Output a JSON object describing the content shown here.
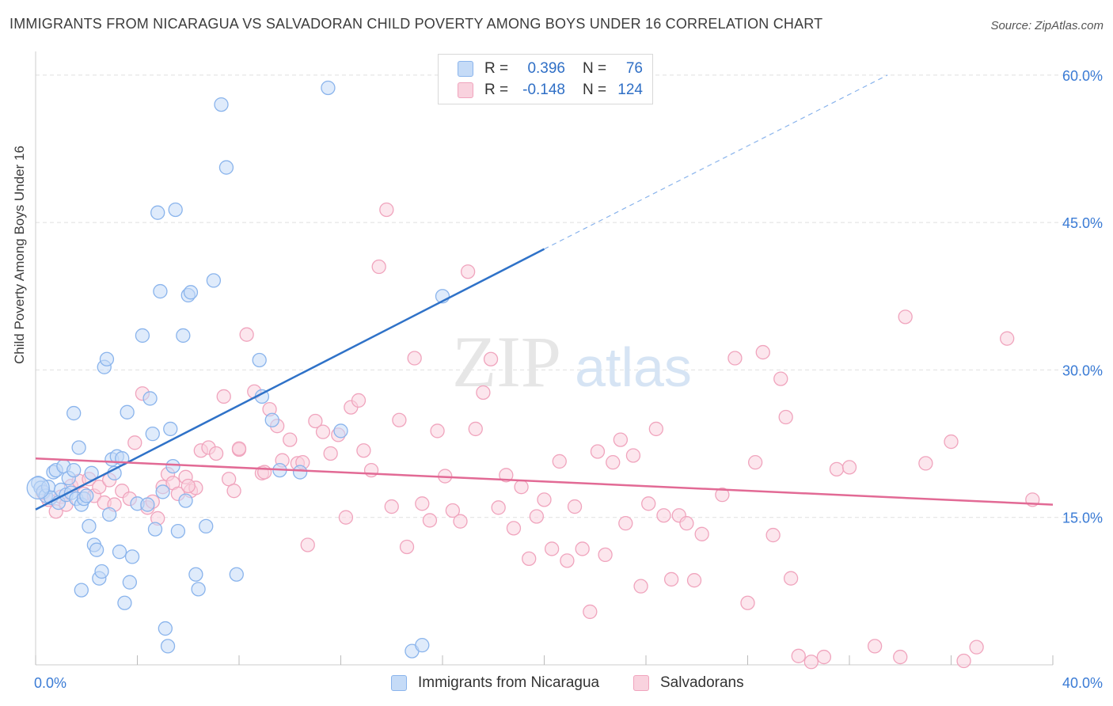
{
  "title": "IMMIGRANTS FROM NICARAGUA VS SALVADORAN CHILD POVERTY AMONG BOYS UNDER 16 CORRELATION CHART",
  "source": "Source: ZipAtlas.com",
  "watermark": {
    "zip": "ZIP",
    "atlas": "atlas"
  },
  "legend": {
    "rows": [
      {
        "r_label": "R =",
        "r_value": "0.396",
        "n_label": "N =",
        "n_value": "76"
      },
      {
        "r_label": "R =",
        "r_value": "-0.148",
        "n_label": "N =",
        "n_value": "124"
      }
    ]
  },
  "chart_data": {
    "type": "scatter",
    "title": "IMMIGRANTS FROM NICARAGUA VS SALVADORAN CHILD POVERTY AMONG BOYS UNDER 16 CORRELATION CHART",
    "xlabel": "",
    "ylabel": "Child Poverty Among Boys Under 16",
    "xlim": [
      0,
      40
    ],
    "ylim": [
      0,
      62
    ],
    "x_tick_labels": [
      "0.0%",
      "40.0%"
    ],
    "y_ticks": [
      15,
      30,
      45,
      60
    ],
    "y_tick_labels": [
      "15.0%",
      "30.0%",
      "45.0%",
      "60.0%"
    ],
    "grid": true,
    "legend_position": "top-center",
    "series": [
      {
        "name": "Immigrants from Nicaragua",
        "color": "#8ab4ec",
        "fill": "#c5dbf7",
        "line_color": "#2f72c8",
        "trend": {
          "x0": 0,
          "y0": 15.8,
          "x1": 20,
          "y1": 42.3,
          "dash_x1": 33.5,
          "dash_y1": 60
        },
        "points": [
          [
            0.1,
            18.5
          ],
          [
            0.2,
            18.0
          ],
          [
            0.3,
            17.6
          ],
          [
            0.4,
            17.2
          ],
          [
            0.5,
            18.1
          ],
          [
            0.6,
            17.0
          ],
          [
            0.7,
            19.6
          ],
          [
            0.8,
            19.8
          ],
          [
            0.9,
            16.5
          ],
          [
            1.0,
            17.8
          ],
          [
            1.1,
            20.2
          ],
          [
            1.2,
            17.3
          ],
          [
            1.3,
            19.0
          ],
          [
            1.4,
            17.5
          ],
          [
            1.5,
            19.8
          ],
          [
            1.6,
            16.9
          ],
          [
            1.7,
            22.1
          ],
          [
            1.8,
            16.3
          ],
          [
            1.9,
            16.9
          ],
          [
            2.0,
            17.2
          ],
          [
            2.1,
            14.1
          ],
          [
            2.2,
            19.5
          ],
          [
            2.3,
            12.2
          ],
          [
            2.4,
            11.7
          ],
          [
            2.5,
            8.8
          ],
          [
            2.6,
            9.5
          ],
          [
            2.7,
            30.3
          ],
          [
            2.8,
            31.1
          ],
          [
            2.9,
            15.3
          ],
          [
            3.0,
            20.9
          ],
          [
            3.1,
            19.5
          ],
          [
            3.2,
            21.2
          ],
          [
            3.3,
            11.5
          ],
          [
            3.4,
            21.0
          ],
          [
            3.5,
            6.3
          ],
          [
            3.6,
            25.7
          ],
          [
            3.7,
            8.4
          ],
          [
            3.8,
            11.0
          ],
          [
            4.0,
            16.4
          ],
          [
            4.2,
            33.5
          ],
          [
            4.4,
            16.3
          ],
          [
            4.5,
            27.1
          ],
          [
            4.6,
            23.5
          ],
          [
            4.7,
            13.8
          ],
          [
            4.8,
            46.0
          ],
          [
            4.9,
            38.0
          ],
          [
            5.0,
            17.6
          ],
          [
            5.1,
            3.7
          ],
          [
            5.2,
            1.9
          ],
          [
            5.3,
            24.0
          ],
          [
            5.4,
            20.2
          ],
          [
            5.5,
            46.3
          ],
          [
            5.6,
            13.6
          ],
          [
            5.8,
            33.5
          ],
          [
            5.9,
            16.7
          ],
          [
            6.0,
            37.6
          ],
          [
            6.1,
            37.9
          ],
          [
            6.3,
            9.2
          ],
          [
            6.4,
            7.7
          ],
          [
            6.7,
            14.1
          ],
          [
            7.0,
            39.1
          ],
          [
            7.3,
            57.0
          ],
          [
            7.5,
            50.6
          ],
          [
            7.9,
            9.2
          ],
          [
            8.8,
            31.0
          ],
          [
            8.9,
            27.3
          ],
          [
            9.3,
            24.9
          ],
          [
            9.6,
            19.8
          ],
          [
            10.4,
            19.6
          ],
          [
            11.5,
            58.7
          ],
          [
            12.0,
            23.8
          ],
          [
            14.8,
            1.4
          ],
          [
            15.2,
            2.0
          ],
          [
            16.0,
            37.5
          ],
          [
            1.5,
            25.6
          ],
          [
            1.8,
            7.6
          ]
        ]
      },
      {
        "name": "Salvadorans",
        "color": "#f0a4bd",
        "fill": "#f9d2de",
        "line_color": "#e26a95",
        "trend": {
          "x0": 0,
          "y0": 21.0,
          "x1": 40,
          "y1": 16.3
        },
        "points": [
          [
            0.3,
            17.5
          ],
          [
            0.5,
            16.8
          ],
          [
            0.8,
            15.6
          ],
          [
            1.0,
            17.1
          ],
          [
            1.2,
            16.3
          ],
          [
            1.4,
            18.2
          ],
          [
            1.7,
            18.7
          ],
          [
            1.9,
            17.4
          ],
          [
            2.1,
            18.9
          ],
          [
            2.3,
            17.2
          ],
          [
            2.5,
            18.1
          ],
          [
            2.7,
            16.5
          ],
          [
            2.9,
            18.8
          ],
          [
            3.1,
            16.3
          ],
          [
            3.4,
            17.7
          ],
          [
            3.7,
            16.9
          ],
          [
            3.9,
            22.6
          ],
          [
            4.2,
            27.6
          ],
          [
            4.4,
            16.0
          ],
          [
            4.6,
            16.6
          ],
          [
            4.8,
            14.9
          ],
          [
            5.0,
            18.1
          ],
          [
            5.2,
            19.4
          ],
          [
            5.4,
            18.5
          ],
          [
            5.6,
            17.4
          ],
          [
            5.9,
            19.1
          ],
          [
            6.1,
            17.7
          ],
          [
            6.3,
            18.0
          ],
          [
            6.5,
            21.8
          ],
          [
            6.8,
            22.1
          ],
          [
            7.1,
            21.5
          ],
          [
            7.4,
            27.3
          ],
          [
            7.6,
            18.9
          ],
          [
            7.8,
            17.7
          ],
          [
            8.0,
            21.9
          ],
          [
            8.3,
            33.6
          ],
          [
            8.6,
            27.8
          ],
          [
            8.9,
            19.5
          ],
          [
            9.2,
            26.0
          ],
          [
            9.5,
            24.3
          ],
          [
            9.7,
            20.8
          ],
          [
            10.0,
            22.9
          ],
          [
            10.3,
            20.5
          ],
          [
            10.5,
            20.6
          ],
          [
            10.7,
            12.2
          ],
          [
            11.0,
            24.8
          ],
          [
            11.3,
            23.7
          ],
          [
            11.6,
            21.5
          ],
          [
            11.9,
            23.4
          ],
          [
            12.2,
            15.0
          ],
          [
            12.4,
            26.2
          ],
          [
            12.7,
            26.9
          ],
          [
            12.9,
            21.8
          ],
          [
            13.2,
            19.8
          ],
          [
            13.5,
            40.5
          ],
          [
            13.8,
            46.3
          ],
          [
            14.0,
            16.1
          ],
          [
            14.3,
            24.9
          ],
          [
            14.6,
            12.0
          ],
          [
            14.9,
            31.2
          ],
          [
            15.2,
            16.4
          ],
          [
            15.5,
            14.7
          ],
          [
            15.8,
            23.8
          ],
          [
            16.1,
            19.2
          ],
          [
            16.4,
            15.7
          ],
          [
            16.7,
            14.6
          ],
          [
            17.0,
            40.0
          ],
          [
            17.3,
            24.0
          ],
          [
            17.6,
            27.7
          ],
          [
            17.9,
            31.1
          ],
          [
            18.2,
            16.0
          ],
          [
            18.5,
            19.3
          ],
          [
            18.8,
            13.9
          ],
          [
            19.1,
            18.1
          ],
          [
            19.4,
            10.8
          ],
          [
            19.7,
            15.1
          ],
          [
            20.0,
            16.8
          ],
          [
            20.3,
            11.8
          ],
          [
            20.6,
            20.7
          ],
          [
            20.9,
            10.6
          ],
          [
            21.2,
            16.1
          ],
          [
            21.5,
            11.8
          ],
          [
            21.8,
            5.4
          ],
          [
            22.1,
            21.7
          ],
          [
            22.4,
            11.2
          ],
          [
            22.7,
            20.6
          ],
          [
            23.0,
            22.9
          ],
          [
            23.2,
            14.4
          ],
          [
            23.5,
            21.3
          ],
          [
            23.8,
            8.0
          ],
          [
            24.1,
            16.4
          ],
          [
            24.4,
            24.0
          ],
          [
            24.7,
            15.2
          ],
          [
            25.0,
            8.7
          ],
          [
            25.3,
            15.2
          ],
          [
            25.6,
            14.4
          ],
          [
            25.9,
            8.6
          ],
          [
            26.2,
            13.3
          ],
          [
            27.0,
            17.3
          ],
          [
            27.5,
            31.2
          ],
          [
            28.0,
            6.3
          ],
          [
            28.3,
            20.6
          ],
          [
            28.6,
            31.8
          ],
          [
            29.0,
            13.2
          ],
          [
            29.3,
            29.1
          ],
          [
            29.5,
            25.2
          ],
          [
            29.7,
            8.8
          ],
          [
            30.0,
            0.9
          ],
          [
            31.0,
            0.8
          ],
          [
            31.5,
            19.9
          ],
          [
            32.0,
            20.1
          ],
          [
            33.0,
            1.9
          ],
          [
            34.0,
            0.8
          ],
          [
            34.2,
            35.4
          ],
          [
            35.0,
            20.5
          ],
          [
            36.0,
            22.7
          ],
          [
            36.5,
            0.4
          ],
          [
            37.0,
            1.8
          ],
          [
            38.2,
            33.2
          ],
          [
            39.2,
            16.8
          ],
          [
            30.5,
            0.3
          ],
          [
            8.0,
            22.0
          ],
          [
            9.0,
            19.6
          ],
          [
            6.0,
            18.2
          ]
        ]
      }
    ]
  }
}
